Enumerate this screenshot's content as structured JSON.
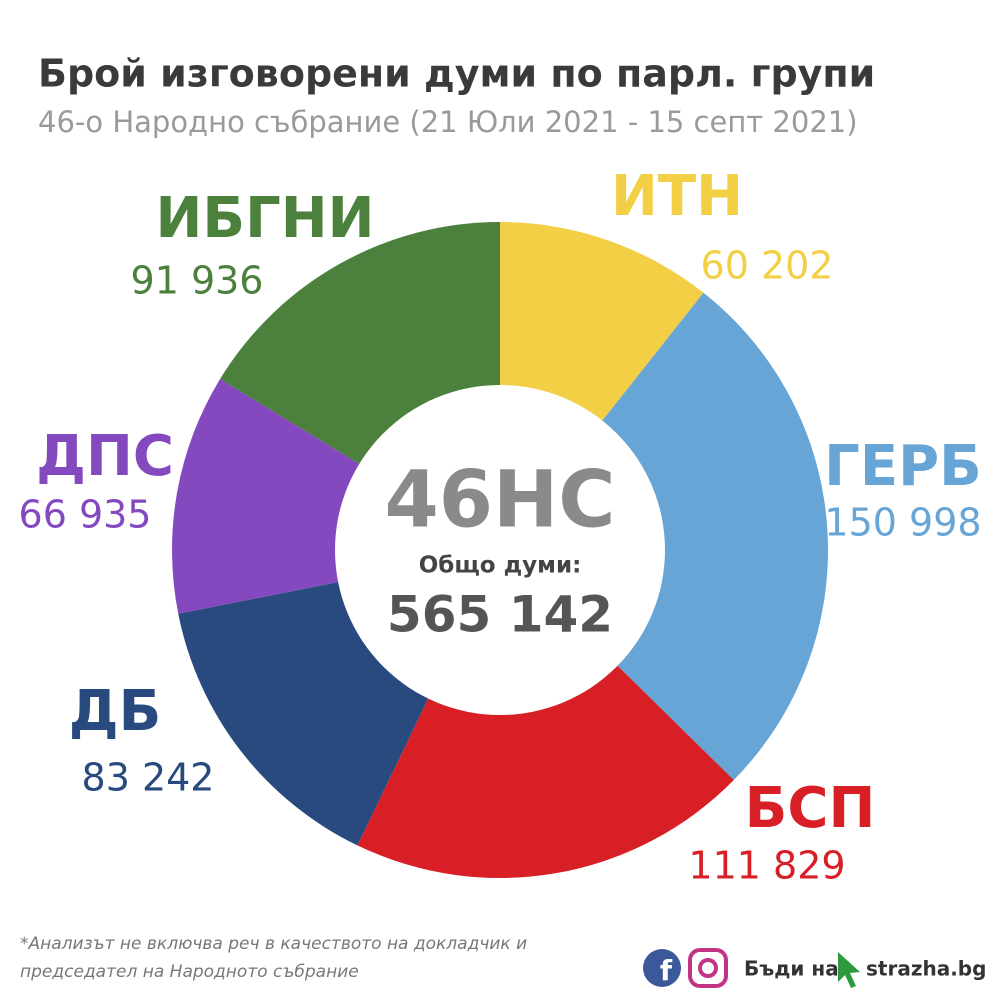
{
  "chart_data": {
    "type": "donut",
    "title": "Брой изговорени думи по парл. групи",
    "subtitle": "46-о Народно събрание (21 Юли 2021 - 15 септ 2021)",
    "categories": [
      "ИТН",
      "ГЕРБ",
      "БСП",
      "ДБ",
      "ДПС",
      "ИБГНИ"
    ],
    "values": [
      60202,
      150998,
      111829,
      83242,
      66935,
      91936
    ],
    "value_labels": [
      "60 202",
      "150 998",
      "111 829",
      "83 242",
      "66 935",
      "91 936"
    ],
    "colors": [
      "#f2cf44",
      "#67a5d6",
      "#d81f26",
      "#284a7e",
      "#8449bf",
      "#4b813c"
    ],
    "center": {
      "title": "46НС",
      "caption": "Общо думи:",
      "total": "565 142"
    }
  },
  "footer": {
    "note_line1": "*Анализът не включва реч в качеството на докладчик и",
    "note_line2": "председател на Народното събрание",
    "brand": "Бъди на",
    "site": "strazha.bg"
  }
}
